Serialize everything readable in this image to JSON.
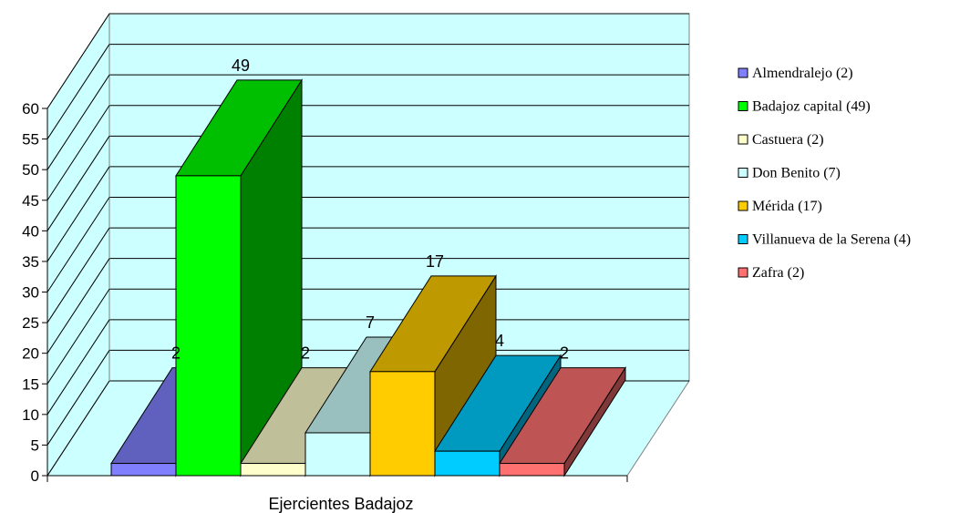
{
  "chart_data": {
    "type": "bar",
    "three_d": true,
    "title": "",
    "xlabel": "",
    "ylabel": "",
    "categories": [
      "Ejercientes Badajoz"
    ],
    "ylim": [
      0,
      60
    ],
    "ytick_step": 5,
    "yticks": [
      "0",
      "5",
      "10",
      "15",
      "20",
      "25",
      "30",
      "35",
      "40",
      "45",
      "50",
      "55",
      "60"
    ],
    "grid": true,
    "legend_position": "right",
    "series": [
      {
        "name": "Almendralejo (2)",
        "value": 2,
        "data_label": "2",
        "color": "#8080ff"
      },
      {
        "name": "Badajoz capital (49)",
        "value": 49,
        "data_label": "49",
        "color": "#00ff00"
      },
      {
        "name": "Castuera (2)",
        "value": 2,
        "data_label": "2",
        "color": "#ffffcc"
      },
      {
        "name": "Don Benito (7)",
        "value": 7,
        "data_label": "7",
        "color": "#ccffff"
      },
      {
        "name": "Mérida (17)",
        "value": 17,
        "data_label": "17",
        "color": "#ffcc00"
      },
      {
        "name": "Villanueva de la Serena (4)",
        "value": 4,
        "data_label": "4",
        "color": "#00ccff"
      },
      {
        "name": "Zafra (2)",
        "value": 2,
        "data_label": "2",
        "color": "#ff7070"
      }
    ],
    "colors": {
      "plot_background": "#ccffff",
      "gridline": "#000000"
    }
  }
}
